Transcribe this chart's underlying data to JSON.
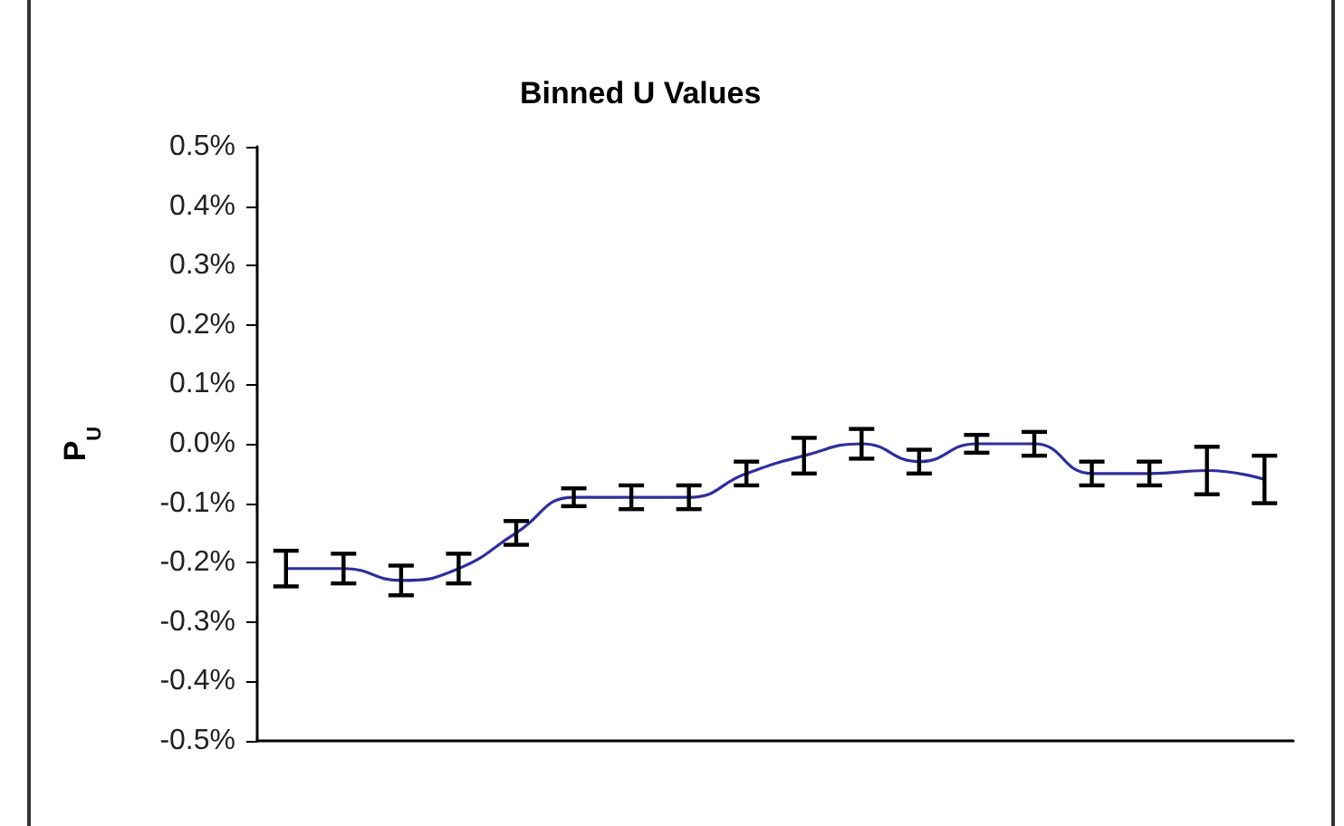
{
  "chart_data": {
    "type": "line",
    "title": "Binned U Values",
    "ylabel": "P$_{U}$",
    "categories": [
      null,
      null,
      null,
      null,
      null,
      null,
      null,
      null,
      null,
      null,
      null,
      null,
      null,
      null,
      null,
      null,
      null,
      null
    ],
    "series": [
      {
        "color": "#2e2e9c",
        "values": [
          -0.21,
          -0.21,
          -0.23,
          -0.21,
          -0.15,
          -0.09,
          -0.09,
          -0.09,
          -0.05,
          -0.02,
          0.0,
          -0.03,
          0.0,
          0.0,
          -0.05,
          -0.05,
          -0.045,
          -0.06
        ],
        "errors": [
          0.03,
          0.025,
          0.025,
          0.025,
          0.02,
          0.015,
          0.02,
          0.02,
          0.02,
          0.03,
          0.025,
          0.02,
          0.015,
          0.02,
          0.02,
          0.02,
          0.04,
          0.04
        ]
      }
    ],
    "ylim": [
      -0.5,
      0.5
    ],
    "yticks": [
      {
        "value": -0.5,
        "label": "-0.5%"
      },
      {
        "value": -0.4,
        "label": "-0.4%"
      },
      {
        "value": -0.3,
        "label": "-0.3%"
      },
      {
        "value": -0.2,
        "label": "-0.2%"
      },
      {
        "value": -0.1,
        "label": "-0.1%"
      },
      {
        "value": 0,
        "label": "0.0%"
      },
      {
        "value": 0.1,
        "label": "0.1%"
      },
      {
        "value": 0.2,
        "label": "0.2%"
      },
      {
        "value": 0.3,
        "label": "0.3%"
      },
      {
        "value": 0.4,
        "label": "0.4%"
      },
      {
        "value": 0.5,
        "label": "0.5%"
      }
    ],
    "grid": false,
    "marker": "none",
    "line_style": "solid"
  }
}
